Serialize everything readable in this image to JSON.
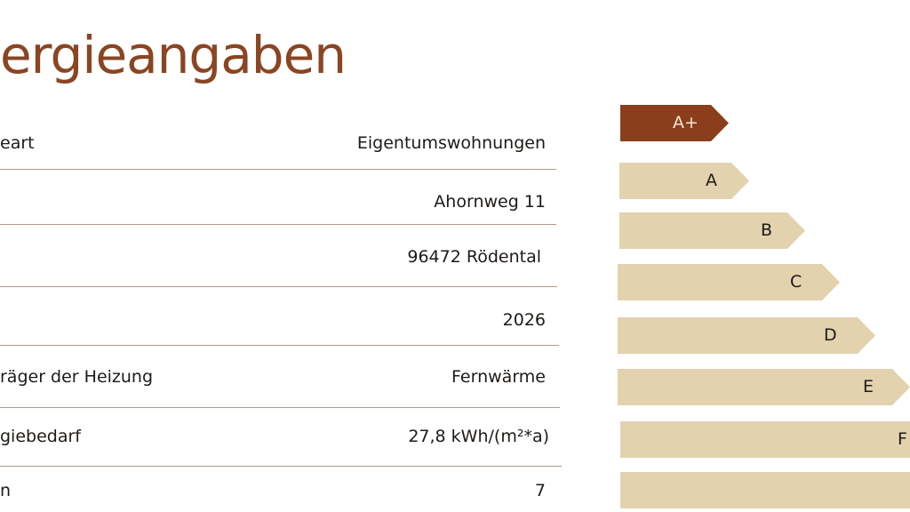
{
  "title": "ergieangaben",
  "rows": [
    {
      "label": "eart",
      "value": "Eigentumswohnungen"
    },
    {
      "label": "",
      "value": "Ahornweg 11"
    },
    {
      "label": "",
      "value": "96472 Rödental"
    },
    {
      "label": "",
      "value": "2026"
    },
    {
      "label": "räger der Heizung",
      "value": "Fernwärme"
    },
    {
      "label": "giebedarf",
      "value": "27,8 kWh/(m²*a)"
    },
    {
      "label": "n",
      "value": "7"
    }
  ],
  "energy_scale": {
    "active_class": "A+",
    "colors": {
      "active": "#8b3e1c",
      "inactive": "#e2d2ae"
    },
    "classes": [
      "A+",
      "A",
      "B",
      "C",
      "D",
      "E",
      "F",
      ""
    ]
  }
}
